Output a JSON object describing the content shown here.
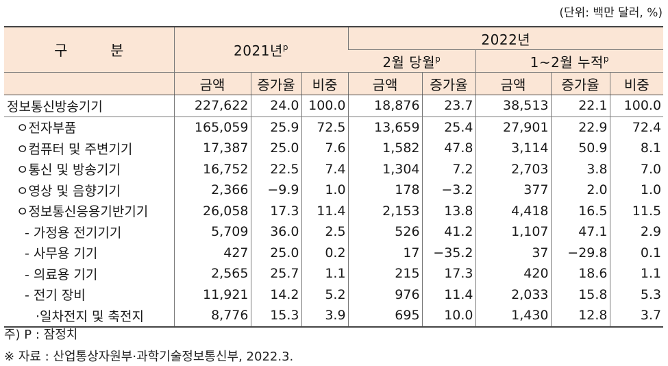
{
  "unit_label": "(단위: 백만 달러, %)",
  "header": {
    "category": "구 분",
    "year2021": "2021년",
    "year2021_sup": "p",
    "year2022": "2022년",
    "feb_month": "2월 당월",
    "feb_month_sup": "p",
    "janfeb_cum": "1~2월 누적",
    "janfeb_cum_sup": "p",
    "cols": [
      "금액",
      "증가율",
      "비중",
      "금액",
      "증가율",
      "금액",
      "증가율",
      "비중"
    ]
  },
  "rows": [
    {
      "label": "정보통신방송기기",
      "values": [
        "227,622",
        "24.0",
        "100.0",
        "18,876",
        "23.7",
        "38,513",
        "22.1",
        "100.0"
      ]
    },
    {
      "label": "ㅇ전자부품",
      "values": [
        "165,059",
        "25.9",
        "72.5",
        "13,659",
        "25.4",
        "27,901",
        "22.9",
        "72.4"
      ]
    },
    {
      "label": "ㅇ컴퓨터 및 주변기기",
      "values": [
        "17,387",
        "25.0",
        "7.6",
        "1,582",
        "47.8",
        "3,114",
        "50.9",
        "8.1"
      ]
    },
    {
      "label": "ㅇ통신 및 방송기기",
      "values": [
        "16,752",
        "22.5",
        "7.4",
        "1,304",
        "7.2",
        "2,703",
        "3.8",
        "7.0"
      ]
    },
    {
      "label": "ㅇ영상 및 음향기기",
      "values": [
        "2,366",
        "-9.9",
        "1.0",
        "178",
        "-3.2",
        "377",
        "2.0",
        "1.0"
      ]
    },
    {
      "label": "ㅇ정보통신응용기반기기",
      "values": [
        "26,058",
        "17.3",
        "11.4",
        "2,153",
        "13.8",
        "4,418",
        "16.5",
        "11.5"
      ]
    },
    {
      "label": "- 가정용 전기기기",
      "values": [
        "5,709",
        "36.0",
        "2.5",
        "526",
        "41.2",
        "1,107",
        "47.1",
        "2.9"
      ]
    },
    {
      "label": "- 사무용 기기",
      "values": [
        "427",
        "25.0",
        "0.2",
        "17",
        "-35.2",
        "37",
        "-29.8",
        "0.1"
      ]
    },
    {
      "label": "- 의료용 기기",
      "values": [
        "2,565",
        "25.7",
        "1.1",
        "215",
        "17.3",
        "420",
        "18.6",
        "1.1"
      ]
    },
    {
      "label": "- 전기 장비",
      "values": [
        "11,921",
        "14.2",
        "5.2",
        "976",
        "11.4",
        "2,033",
        "15.8",
        "5.3"
      ]
    },
    {
      "label": "·일차전지 및 축전지",
      "values": [
        "8,776",
        "15.3",
        "3.9",
        "695",
        "10.0",
        "1,430",
        "12.8",
        "3.7"
      ]
    }
  ],
  "notes": {
    "note1": "주) P : 잠정치",
    "note2": "※ 자료 : 산업통상자원부·과학기술정보통신부, 2022.3."
  }
}
